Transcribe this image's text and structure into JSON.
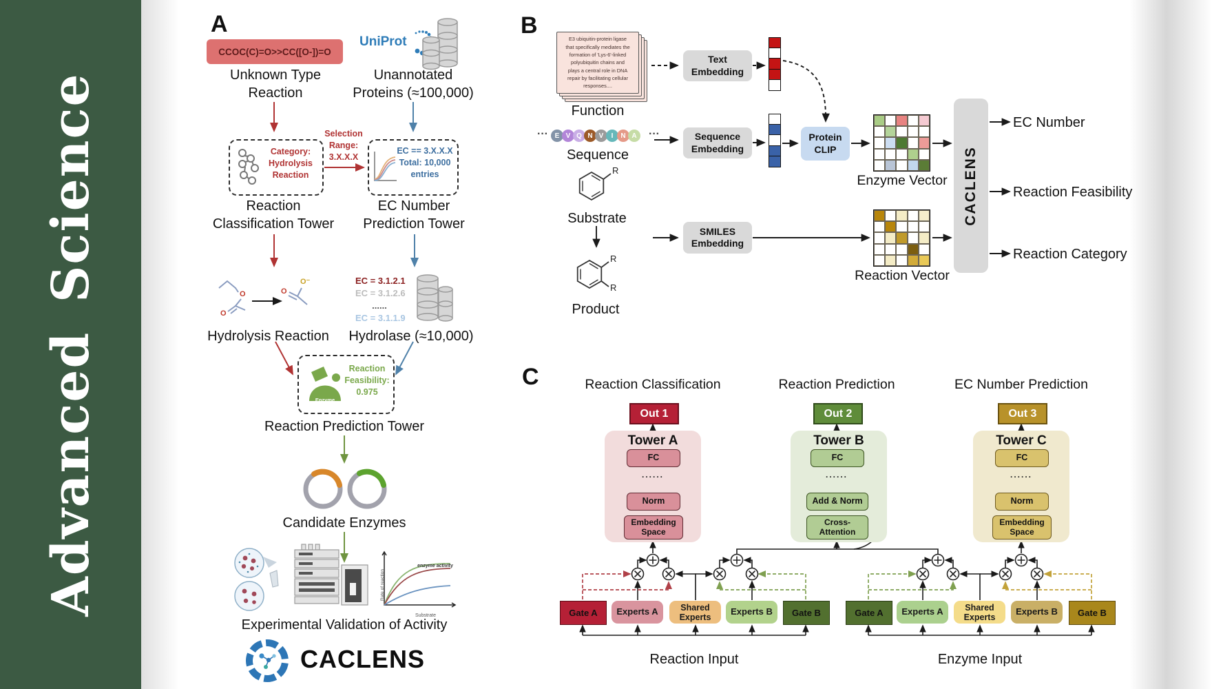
{
  "sidebar": {
    "title": "Advanced  Science",
    "bar_color": "#3c5a43"
  },
  "panelA": {
    "label": "A",
    "smiles_box": "CCOC(C)=O>>CC([O-])=O",
    "unknown_type": "Unknown Type\nReaction",
    "uniprot": "UniProt",
    "unannotated": "Unannotated\nProteins (≈100,000)",
    "category_box": "Category:\nHydrolysis\nReaction",
    "selection_range": "Selection\nRange:\n3.X.X.X",
    "ec_filter_box": "EC == 3.X.X.X\nTotal: 10,000\nentries",
    "classification_tower": "Reaction\nClassification Tower",
    "ec_tower": "EC Number\nPrediction Tower",
    "hydrolysis": "Hydrolysis Reaction",
    "ec_list": [
      "EC = 3.1.2.1",
      "EC = 3.1.2.6",
      "......",
      "EC = 3.1.1.9"
    ],
    "hydrolase": "Hydrolase (≈10,000)",
    "enzyme_blob": "Enzyme",
    "feasibility": "Reaction\nFeasibility:\n0.975",
    "prediction_tower": "Reaction Prediction Tower",
    "candidates": "Candidate Enzymes",
    "kinetics": {
      "curve": "enzyme activity",
      "y": "Rate of reaction",
      "x": "Substrate"
    },
    "validation": "Experimental Validation of Activity",
    "brand": "CACLENS",
    "atoms": {
      "o": "O",
      "o_minus": "O⁻"
    }
  },
  "panelB": {
    "label": "B",
    "function_card": "E3 ubiquitin-protein ligase\nthat specifically mediates the\nformation of 'Lys-6'-linked\npolyubiquitin chains and\nplays a central role in DNA\nrepair by facilitating cellular\nresponses....",
    "function": "Function",
    "ellipsis": "···",
    "sequence_label": "Sequence",
    "sequence": [
      {
        "t": "E",
        "c": "#8393a8"
      },
      {
        "t": "V",
        "c": "#b285d8"
      },
      {
        "t": "Q",
        "c": "#c9aee6"
      },
      {
        "t": "N",
        "c": "#9c5a28"
      },
      {
        "t": "V",
        "c": "#9b9b9b"
      },
      {
        "t": "I",
        "c": "#66b8ba"
      },
      {
        "t": "N",
        "c": "#e59a88"
      },
      {
        "t": "A",
        "c": "#c6dca6"
      }
    ],
    "substrate": "Substrate",
    "product": "Product",
    "r": "R",
    "text_embedding": "Text\nEmbedding",
    "sequence_embedding": "Sequence\nEmbedding",
    "smiles_embedding": "SMILES\nEmbedding",
    "protein_clip": "Protein\nCLIP",
    "text_vector": [
      "#c41414",
      "#ffffff",
      "#c41414",
      "#c41414",
      "#ffffff"
    ],
    "seq_vector": [
      "#ffffff",
      "#3a62a8",
      "#ffffff",
      "#3a62a8",
      "#3a62a8"
    ],
    "enzyme_matrix_label": "Enzyme Vector",
    "reaction_matrix_label": "Reaction Vector",
    "enzyme_matrix": [
      [
        "#a9cc85",
        "#ffffff",
        "#e88381",
        "#ffffff",
        "#f5cad2"
      ],
      [
        "#ffffff",
        "#b4d49a",
        "#ffffff",
        "#ffffff",
        "#ffffff"
      ],
      [
        "#ffffff",
        "#ccddf1",
        "#4e7a32",
        "#ffffff",
        "#ec9b98"
      ],
      [
        "#ffffff",
        "#ffffff",
        "#ffffff",
        "#afd08d",
        "#ffffff"
      ],
      [
        "#ffffff",
        "#b9c5d6",
        "#ffffff",
        "#c2d7ee",
        "#5b7c36"
      ]
    ],
    "reaction_matrix": [
      [
        "#b8860b",
        "#ffffff",
        "#f4ecc6",
        "#ffffff",
        "#f6eecb"
      ],
      [
        "#ffffff",
        "#b8860b",
        "#ffffff",
        "#ffffff",
        "#ffffff"
      ],
      [
        "#ffffff",
        "#f4ecc6",
        "#c09a2a",
        "#ffffff",
        "#f4ecc6"
      ],
      [
        "#ffffff",
        "#ffffff",
        "#ffffff",
        "#7c5e10",
        "#ffffff"
      ],
      [
        "#ffffff",
        "#f4ecc6",
        "#ffffff",
        "#d2ab39",
        "#e9c957"
      ]
    ],
    "caclens_bar": "CACLENS",
    "outputs": [
      "EC Number",
      "Reaction Feasibility",
      "Reaction Category"
    ]
  },
  "panelC": {
    "label": "C",
    "headers": [
      "Reaction Classification",
      "Reaction Prediction",
      "EC Number Prediction"
    ],
    "outs": [
      "Out 1",
      "Out 2",
      "Out 3"
    ],
    "towers": [
      {
        "title": "Tower A",
        "fc": "FC",
        "dots": "......",
        "mid": "Norm",
        "bottom": "Embedding\nSpace"
      },
      {
        "title": "Tower B",
        "fc": "FC",
        "dots": "......",
        "mid": "Add & Norm",
        "bottom": "Cross-\nAttention"
      },
      {
        "title": "Tower C",
        "fc": "FC",
        "dots": "......",
        "mid": "Norm",
        "bottom": "Embedding\nSpace"
      }
    ],
    "moe": [
      {
        "gate_a": "Gate A",
        "experts_a": "Experts A",
        "shared": "Shared\nExperts",
        "experts_b": "Experts B",
        "gate_b": "Gate B",
        "input": "Reaction Input"
      },
      {
        "gate_a": "Gate A",
        "experts_a": "Experts A",
        "shared": "Shared\nExperts",
        "experts_b": "Experts B",
        "gate_b": "Gate B",
        "input": "Enzyme Input"
      }
    ]
  },
  "colors": {
    "sidebar_green": "#3c5a43",
    "smiles_red_bg": "#dd7170",
    "red_accent": "#b03333",
    "blue_accent": "#4f81a9",
    "green_accent": "#6f9440",
    "uniprot_blue": "#2e7cb8",
    "out1": "#b52036",
    "out2": "#5f8c3a",
    "out3": "#b8922a",
    "towerA_bg": "#f2dcdc",
    "towerB_bg": "#e4ecda",
    "towerC_bg": "#f0e9ce",
    "gate_red": "#b52036",
    "gate_green": "#52702f",
    "gate_gold": "#a9871c"
  }
}
